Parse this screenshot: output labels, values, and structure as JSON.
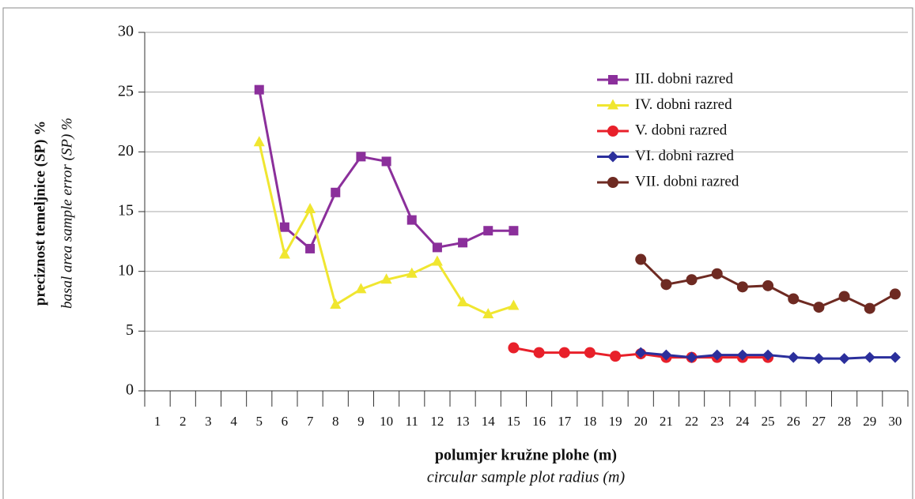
{
  "chart_data": {
    "type": "line",
    "y_label": "preciznost temeljnice (SP) %",
    "y_label_2": "basal area sample error (SP) %",
    "x_label": "polumjer kružne plohe (m)",
    "x_label_2": "circular sample plot radius (m)",
    "categories": [
      "1",
      "2",
      "3",
      "4",
      "5",
      "6",
      "7",
      "8",
      "9",
      "10",
      "11",
      "12",
      "13",
      "14",
      "15",
      "16",
      "17",
      "18",
      "19",
      "20",
      "21",
      "22",
      "23",
      "24",
      "25",
      "26",
      "27",
      "28",
      "29",
      "30"
    ],
    "series": [
      {
        "name": "III. dobni razred",
        "color": "#8b2f9b",
        "marker": "square",
        "values": [
          null,
          null,
          null,
          null,
          25.2,
          13.7,
          11.9,
          16.6,
          19.6,
          19.2,
          14.3,
          12.0,
          12.4,
          13.4,
          13.4,
          null,
          null,
          null,
          null,
          null,
          null,
          null,
          null,
          null,
          null,
          null,
          null,
          null,
          null,
          null
        ]
      },
      {
        "name": "IV. dobni razred",
        "color": "#f0e630",
        "marker": "triangle",
        "values": [
          null,
          null,
          null,
          null,
          20.8,
          11.4,
          15.2,
          7.2,
          8.5,
          9.3,
          9.8,
          10.8,
          7.4,
          6.4,
          7.1,
          null,
          null,
          null,
          null,
          null,
          null,
          null,
          null,
          null,
          null,
          null,
          null,
          null,
          null,
          null
        ]
      },
      {
        "name": "V. dobni razred",
        "color": "#e8202a",
        "marker": "circle",
        "values": [
          null,
          null,
          null,
          null,
          null,
          null,
          null,
          null,
          null,
          null,
          null,
          null,
          null,
          null,
          3.6,
          3.2,
          3.2,
          3.2,
          2.9,
          3.1,
          2.8,
          2.8,
          2.8,
          2.8,
          2.8,
          null,
          null,
          null,
          null,
          null
        ]
      },
      {
        "name": "VI. dobni razred",
        "color": "#2b2f9c",
        "marker": "diamond",
        "values": [
          null,
          null,
          null,
          null,
          null,
          null,
          null,
          null,
          null,
          null,
          null,
          null,
          null,
          null,
          null,
          null,
          null,
          null,
          null,
          3.2,
          3.0,
          2.8,
          3.0,
          3.0,
          3.0,
          2.8,
          2.7,
          2.7,
          2.8,
          2.8
        ]
      },
      {
        "name": "VII. dobni razred",
        "color": "#6e2a22",
        "marker": "circle",
        "values": [
          null,
          null,
          null,
          null,
          null,
          null,
          null,
          null,
          null,
          null,
          null,
          null,
          null,
          null,
          null,
          null,
          null,
          null,
          null,
          11.0,
          8.9,
          9.3,
          9.8,
          8.7,
          8.8,
          7.7,
          7.0,
          7.9,
          6.9,
          8.1
        ]
      }
    ],
    "ylim": [
      0,
      30
    ],
    "yticks": [
      0,
      5,
      10,
      15,
      20,
      25,
      30
    ],
    "grid": true,
    "legend": "upper right"
  }
}
